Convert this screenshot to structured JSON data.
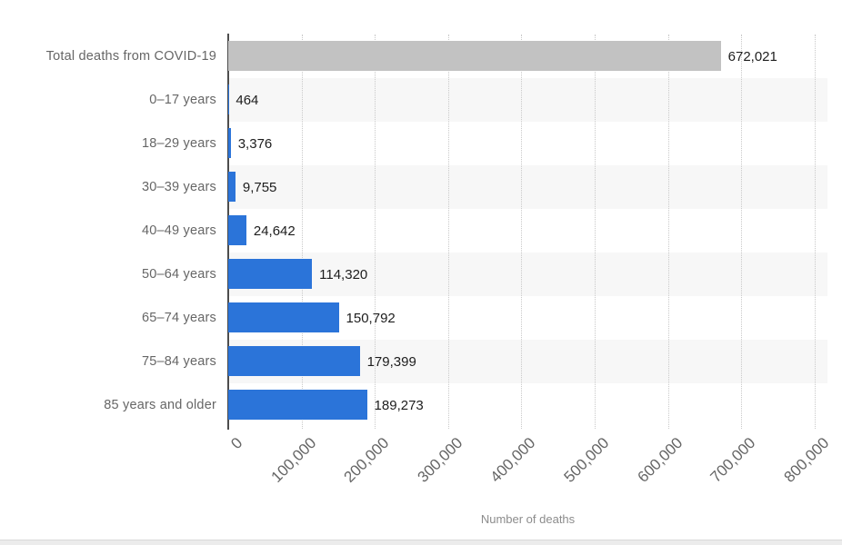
{
  "chart_data": {
    "type": "bar",
    "orientation": "horizontal",
    "title": "",
    "xlabel": "Number of deaths",
    "ylabel": "",
    "grid": "vertical-dotted",
    "legend": "none",
    "xlim": [
      0,
      817000
    ],
    "categories": [
      "Total deaths from COVID-19",
      "0–17 years",
      "18–29 years",
      "30–39 years",
      "40–49 years",
      "50–64 years",
      "65–74 years",
      "75–84 years",
      "85 years and older"
    ],
    "values": [
      672021,
      464,
      3376,
      9755,
      24642,
      114320,
      150792,
      179399,
      189273
    ],
    "value_labels": [
      "672,021",
      "464",
      "3,376",
      "9,755",
      "24,642",
      "114,320",
      "150,792",
      "179,399",
      "189,273"
    ],
    "bar_colors": [
      "#c2c2c2",
      "#2b74d9",
      "#2b74d9",
      "#2b74d9",
      "#2b74d9",
      "#2b74d9",
      "#2b74d9",
      "#2b74d9",
      "#2b74d9"
    ],
    "x_ticks": [
      {
        "value": 0,
        "label": "0"
      },
      {
        "value": 100000,
        "label": "100,000"
      },
      {
        "value": 200000,
        "label": "200,000"
      },
      {
        "value": 300000,
        "label": "300,000"
      },
      {
        "value": 400000,
        "label": "400,000"
      },
      {
        "value": 500000,
        "label": "500,000"
      },
      {
        "value": 600000,
        "label": "600,000"
      },
      {
        "value": 700000,
        "label": "700,000"
      },
      {
        "value": 800000,
        "label": "800,000"
      }
    ]
  },
  "colors": {
    "bar_blue": "#2b74d9",
    "bar_gray": "#c2c2c2",
    "row_stripe": "#f7f7f7",
    "gridline": "#c9c9c9",
    "axis_line": "#4d4d4d",
    "category_text": "#666666",
    "tick_text": "#666666",
    "value_text": "#1d1d1d",
    "axis_title_text": "#8c8c8c",
    "bottom_strip": "#ececec"
  }
}
